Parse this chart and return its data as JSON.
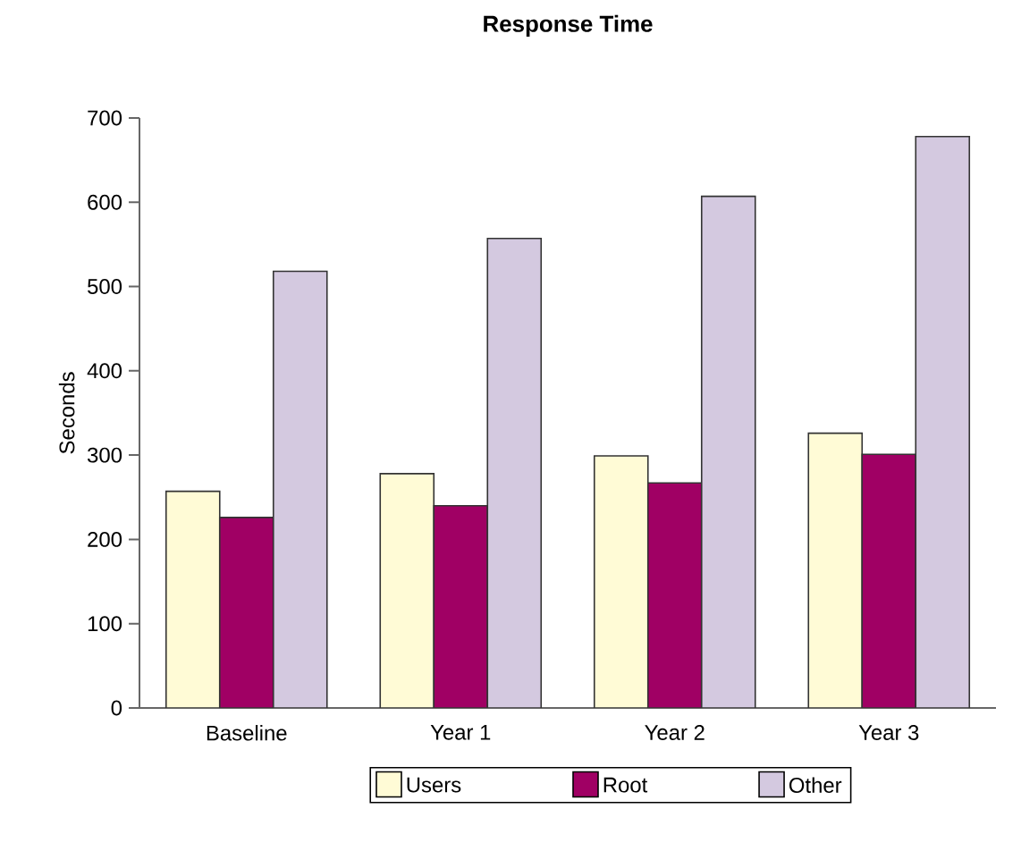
{
  "chart_data": {
    "type": "bar",
    "title": "Response Time",
    "ylabel": "Seconds",
    "categories": [
      "Baseline",
      "Year 1",
      "Year 2",
      "Year 3"
    ],
    "series": [
      {
        "name": "Users",
        "color": "#fffbd6",
        "values": [
          257,
          278,
          299,
          326
        ]
      },
      {
        "name": "Root",
        "color": "#a00064",
        "values": [
          226,
          240,
          267,
          301
        ]
      },
      {
        "name": "Other",
        "color": "#d4c9e0",
        "values": [
          518,
          557,
          607,
          678
        ]
      }
    ],
    "ylim": [
      0,
      700
    ],
    "yticks": [
      0,
      100,
      200,
      300,
      400,
      500,
      600,
      700
    ],
    "grid": false,
    "legend": "bottom"
  }
}
